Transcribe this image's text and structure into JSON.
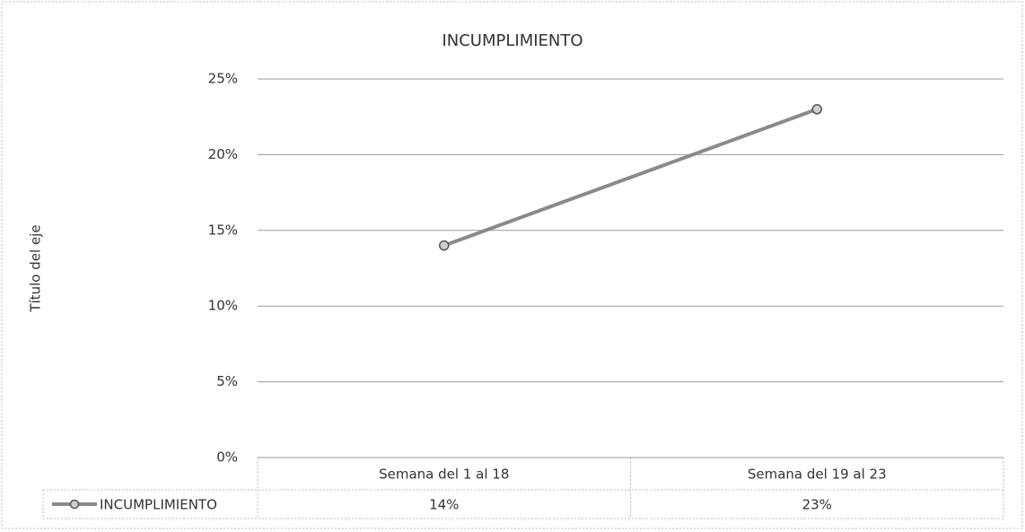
{
  "chart_data": {
    "type": "line",
    "title": "INCUMPLIMIENTO",
    "y_label": "Título del eje",
    "categories": [
      "Semana del 1 al 18",
      "Semana del 19 al 23"
    ],
    "series": [
      {
        "name": "INCUMPLIMIENTO",
        "color": "#8a8a8a",
        "values": [
          14,
          23
        ],
        "value_labels": [
          "14%",
          "23%"
        ]
      }
    ],
    "ylim": [
      0,
      25
    ],
    "yticks": [
      {
        "value": 0,
        "label": "0%"
      },
      {
        "value": 5,
        "label": "5%"
      },
      {
        "value": 10,
        "label": "10%"
      },
      {
        "value": 15,
        "label": "15%"
      },
      {
        "value": 20,
        "label": "20%"
      },
      {
        "value": 25,
        "label": "25%"
      }
    ],
    "grid": true,
    "data_table": true
  }
}
